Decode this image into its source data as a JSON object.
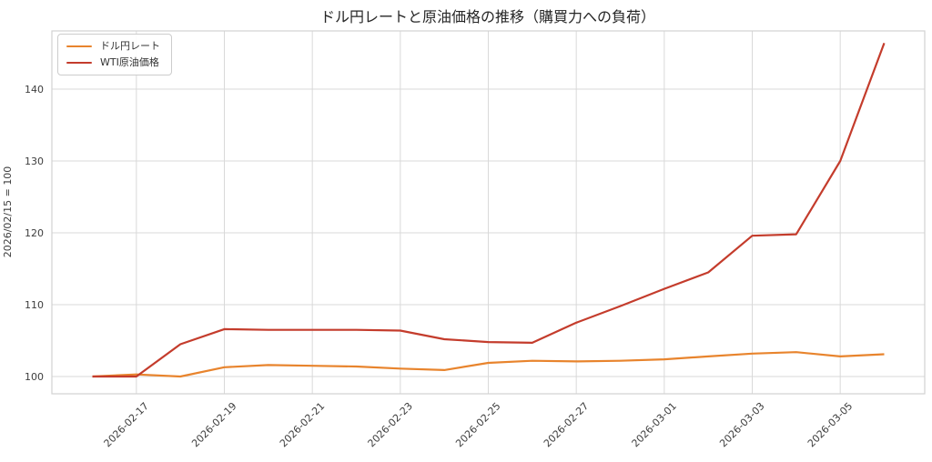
{
  "title": "ドル円レートと原油価格の推移（購買力への負荷）",
  "axes": {
    "ylabel": "2026/02/15 = 100"
  },
  "chart_data": {
    "type": "line",
    "x": [
      "2026-02-16",
      "2026-02-17",
      "2026-02-18",
      "2026-02-19",
      "2026-02-20",
      "2026-02-21",
      "2026-02-22",
      "2026-02-23",
      "2026-02-24",
      "2026-02-25",
      "2026-02-26",
      "2026-02-27",
      "2026-02-28",
      "2026-03-01",
      "2026-03-02",
      "2026-03-03",
      "2026-03-04",
      "2026-03-05",
      "2026-03-06"
    ],
    "series": [
      {
        "name": "ドル円レート",
        "color": "#e8842d",
        "values": [
          100.0,
          100.3,
          100.0,
          101.3,
          101.6,
          101.5,
          101.4,
          101.1,
          100.9,
          101.9,
          102.2,
          102.1,
          102.2,
          102.4,
          102.8,
          103.2,
          103.4,
          102.8,
          103.1
        ]
      },
      {
        "name": "WTI原油価格",
        "color": "#c43c2c",
        "values": [
          100.0,
          100.0,
          104.5,
          106.6,
          106.5,
          106.5,
          106.5,
          106.4,
          105.2,
          104.8,
          104.7,
          107.5,
          109.8,
          112.2,
          114.5,
          119.6,
          119.8,
          130.0,
          146.4
        ]
      }
    ],
    "title": "ドル円レートと原油価格の推移（購買力への負荷）",
    "xlabel": "",
    "ylabel": "2026/02/15 = 100",
    "xticks": [
      "2026-02-17",
      "2026-02-19",
      "2026-02-21",
      "2026-02-23",
      "2026-02-25",
      "2026-02-27",
      "2026-03-01",
      "2026-03-03",
      "2026-03-05"
    ],
    "yticks": [
      100,
      110,
      120,
      130,
      140
    ],
    "ylim": [
      97.6,
      148.1
    ],
    "grid": true,
    "legend_position": "upper-left",
    "colors": {
      "grid": "#d9d9d9",
      "spine": "#d2d2d2",
      "tick_text": "#3d3d3d",
      "title_text": "#262626"
    }
  }
}
